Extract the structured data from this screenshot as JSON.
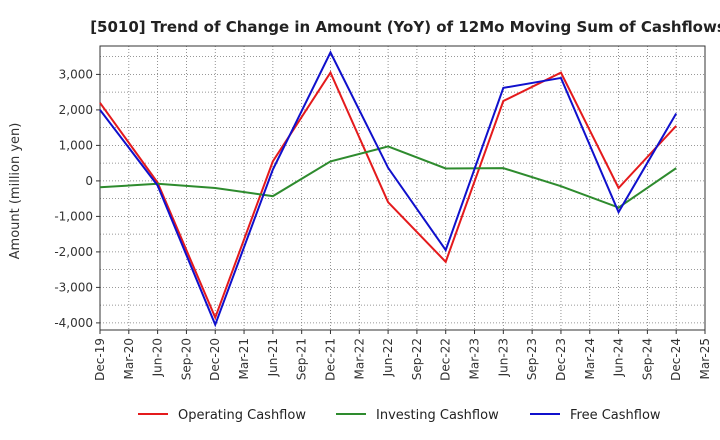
{
  "chart_data": {
    "type": "line",
    "title": "[5010]  Trend of Change in Amount (YoY) of 12Mo Moving Sum of Cashflows",
    "xlabel": "",
    "ylabel": "Amount (million yen)",
    "ylim": [
      -4200,
      3800
    ],
    "yticks": [
      -4000,
      -3000,
      -2000,
      -1000,
      0,
      1000,
      2000,
      3000
    ],
    "ytick_labels": [
      "-4,000",
      "-3,000",
      "-2,000",
      "-1,000",
      "0",
      "1,000",
      "2,000",
      "3,000"
    ],
    "categories": [
      "Dec-19",
      "Mar-20",
      "Jun-20",
      "Sep-20",
      "Dec-20",
      "Mar-21",
      "Jun-21",
      "Sep-21",
      "Dec-21",
      "Mar-22",
      "Jun-22",
      "Sep-22",
      "Dec-22",
      "Mar-23",
      "Jun-23",
      "Sep-23",
      "Dec-23",
      "Mar-24",
      "Jun-24",
      "Sep-24",
      "Dec-24",
      "Mar-25"
    ],
    "grid": true,
    "legend_position": "bottom",
    "series": [
      {
        "name": "Operating Cashflow",
        "color": "#e41a1c",
        "points": [
          [
            0,
            2200
          ],
          [
            2,
            -50
          ],
          [
            4,
            -3850
          ],
          [
            6,
            550
          ],
          [
            8,
            3050
          ],
          [
            10,
            -600
          ],
          [
            12,
            -2280
          ],
          [
            14,
            2250
          ],
          [
            16,
            3050
          ],
          [
            18,
            -200
          ],
          [
            20,
            1550
          ]
        ]
      },
      {
        "name": "Investing Cashflow",
        "color": "#2e8b2e",
        "points": [
          [
            0,
            -180
          ],
          [
            2,
            -80
          ],
          [
            4,
            -200
          ],
          [
            6,
            -430
          ],
          [
            8,
            550
          ],
          [
            10,
            970
          ],
          [
            12,
            350
          ],
          [
            14,
            360
          ],
          [
            16,
            -150
          ],
          [
            18,
            -750
          ],
          [
            20,
            360
          ]
        ]
      },
      {
        "name": "Free Cashflow",
        "color": "#1010cc",
        "points": [
          [
            0,
            2000
          ],
          [
            2,
            -130
          ],
          [
            4,
            -4050
          ],
          [
            6,
            320
          ],
          [
            8,
            3620
          ],
          [
            10,
            370
          ],
          [
            12,
            -1950
          ],
          [
            14,
            2620
          ],
          [
            16,
            2900
          ],
          [
            18,
            -880
          ],
          [
            20,
            1900
          ]
        ]
      }
    ]
  }
}
